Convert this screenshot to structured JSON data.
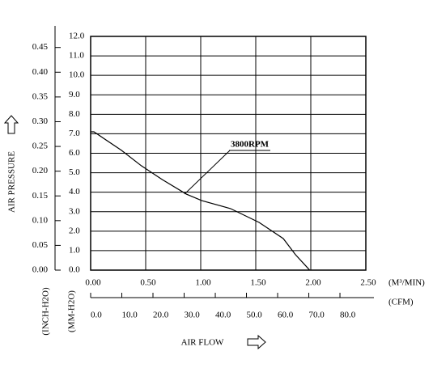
{
  "chart_data": {
    "type": "line",
    "x_label": "AIR FLOW",
    "y_label": "AIR PRESSURE",
    "x_unit": "(M³/MIN)",
    "x2_unit": "(CFM)",
    "y_unit": "(MM-H2O)",
    "y2_unit": "(INCH-H2O)",
    "x": [
      0,
      0.03,
      0.28,
      0.46,
      0.65,
      0.87,
      1.01,
      1.27,
      1.53,
      1.75,
      1.86,
      1.99
    ],
    "series": [
      {
        "name": "3800RPM",
        "color": "#000000",
        "values": [
          7.1,
          7.1,
          6.15,
          5.36,
          4.65,
          3.9,
          3.57,
          3.16,
          2.45,
          1.62,
          0.8,
          0
        ]
      }
    ],
    "xlim": [
      0,
      2.5
    ],
    "xticks": [
      {
        "value": 0,
        "label": "0.00"
      },
      {
        "value": 0.5,
        "label": "0.50"
      },
      {
        "value": 1,
        "label": "1.00"
      },
      {
        "value": 1.5,
        "label": "1.50"
      },
      {
        "value": 2,
        "label": "2.00"
      },
      {
        "value": 2.5,
        "label": "2.50"
      }
    ],
    "x2lim": [
      0,
      88.3
    ],
    "x2ticks": [
      {
        "value": 0,
        "label": "0.0"
      },
      {
        "value": 10,
        "label": "10.0"
      },
      {
        "value": 20,
        "label": "20.0"
      },
      {
        "value": 30,
        "label": "30.0"
      },
      {
        "value": 40,
        "label": "40.0"
      },
      {
        "value": 50,
        "label": "50.0"
      },
      {
        "value": 60,
        "label": "60.0"
      },
      {
        "value": 70,
        "label": "70.0"
      },
      {
        "value": 80,
        "label": "80.0"
      }
    ],
    "ylim": [
      0,
      12
    ],
    "yticks": [
      {
        "value": 0,
        "label": "0.0"
      },
      {
        "value": 1,
        "label": "1.0"
      },
      {
        "value": 2,
        "label": "2.0"
      },
      {
        "value": 3,
        "label": "3.0"
      },
      {
        "value": 4,
        "label": "4.0"
      },
      {
        "value": 5,
        "label": "5.0"
      },
      {
        "value": 6,
        "label": "6.0"
      },
      {
        "value": 7,
        "label": "7.0"
      },
      {
        "value": 8,
        "label": "8.0"
      },
      {
        "value": 9,
        "label": "9.0"
      },
      {
        "value": 10,
        "label": "10.0"
      },
      {
        "value": 11,
        "label": "11.0"
      },
      {
        "value": 12,
        "label": "12.0"
      }
    ],
    "y2lim": [
      0,
      0.4724
    ],
    "y2ticks": [
      {
        "value": 0,
        "label": "0.00"
      },
      {
        "value": 0.05,
        "label": "0.05"
      },
      {
        "value": 0.1,
        "label": "0.10"
      },
      {
        "value": 0.15,
        "label": "0.15"
      },
      {
        "value": 0.2,
        "label": "0.20"
      },
      {
        "value": 0.25,
        "label": "0.25"
      },
      {
        "value": 0.3,
        "label": "0.30"
      },
      {
        "value": 0.35,
        "label": "0.35"
      },
      {
        "value": 0.4,
        "label": "0.40"
      },
      {
        "value": 0.45,
        "label": "0.45"
      }
    ],
    "grid": true
  }
}
